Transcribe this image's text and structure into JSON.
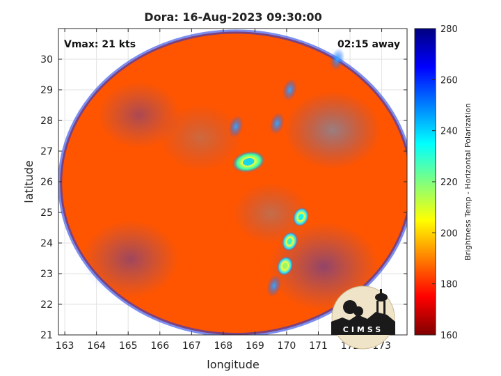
{
  "chart_data": {
    "type": "heatmap",
    "title": "Dora: 16-Aug-2023 09:30:00",
    "xlabel": "longitude",
    "ylabel": "latitude",
    "xlim": [
      162.8,
      173.8
    ],
    "ylim": [
      21,
      31
    ],
    "xticks": [
      163,
      164,
      165,
      166,
      167,
      168,
      169,
      170,
      171,
      172,
      173
    ],
    "yticks": [
      21,
      22,
      23,
      24,
      25,
      26,
      27,
      28,
      29,
      30
    ],
    "grid": true,
    "annotations": {
      "vmax": "Vmax: 21 kts",
      "away": "02:15 away"
    },
    "colorbar": {
      "label": "Brightness Temp - Horizontal Polarization",
      "range": [
        160,
        280
      ],
      "ticks": [
        160,
        180,
        200,
        220,
        240,
        260,
        280
      ],
      "colormap": "jet",
      "placement": "right"
    },
    "background_value": 255,
    "swath": {
      "center": [
        168.4,
        25.95
      ],
      "semi_axes_deg": [
        5.55,
        4.95
      ]
    },
    "features": [
      {
        "lon": 168.8,
        "lat": 26.65,
        "value": 200,
        "note": "cold core"
      },
      {
        "lon": 170.45,
        "lat": 24.85,
        "value": 205
      },
      {
        "lon": 170.1,
        "lat": 24.05,
        "value": 210
      },
      {
        "lon": 169.95,
        "lat": 23.25,
        "value": 222
      },
      {
        "lon": 169.6,
        "lat": 22.6,
        "value": 240
      },
      {
        "lon": 169.7,
        "lat": 27.9,
        "value": 245
      },
      {
        "lon": 170.1,
        "lat": 29.0,
        "value": 244
      },
      {
        "lon": 168.4,
        "lat": 27.8,
        "value": 242
      },
      {
        "lon": 171.6,
        "lat": 30.0,
        "value": 240
      }
    ]
  },
  "logo": {
    "text": "CIMSS"
  }
}
